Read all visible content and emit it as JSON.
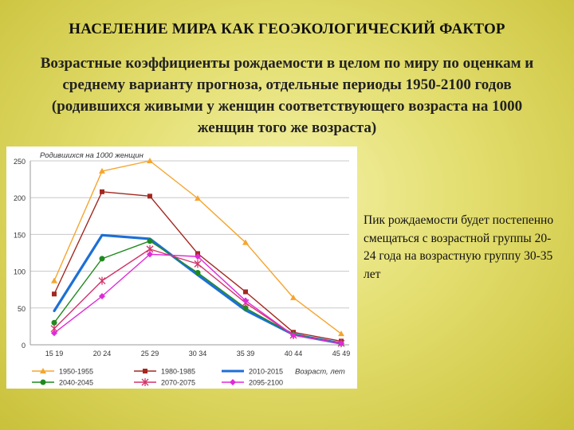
{
  "slide": {
    "title": "НАСЕЛЕНИЕ МИРА КАК ГЕОЭКОЛОГИЧЕСКИЙ ФАКТОР",
    "subtitle": "Возрастные коэффициенты рождаемости в целом по миру по оценкам и среднему варианту прогноза, отдельные периоды 1950-2100 годов (родившихся живыми у женщин соответствующего возраста на 1000 женщин того же возраста)",
    "note": "Пик рождаемости будет постепенно смещаться с возрастной группы 20-24 года на возрастную группу 30-35 лет"
  },
  "chart_data": {
    "type": "line",
    "ylabel": "Родившихся на 1000 женщин",
    "xlabel": "Возраст, лет",
    "ylim": [
      0,
      250
    ],
    "yticks": [
      "0",
      "50",
      "100",
      "150",
      "200",
      "250"
    ],
    "grid": true,
    "legend_position": "bottom",
    "categories": [
      "15 19",
      "20 24",
      "25 29",
      "30 34",
      "35 39",
      "40 44",
      "45 49"
    ],
    "series": [
      {
        "name": "1950-1955",
        "color": "#f5a52e",
        "marker": "triangle",
        "values": [
          87,
          236,
          250,
          199,
          139,
          64,
          15
        ]
      },
      {
        "name": "1980-1985",
        "color": "#a3281f",
        "marker": "square",
        "values": [
          69,
          208,
          202,
          124,
          72,
          17,
          5
        ]
      },
      {
        "name": "2010-2015",
        "color": "#1d6fd6",
        "marker": "none",
        "values": [
          46,
          149,
          144,
          95,
          47,
          14,
          2
        ]
      },
      {
        "name": "2040-2045",
        "color": "#1e8a1e",
        "marker": "circle",
        "values": [
          30,
          117,
          141,
          98,
          50,
          14,
          2
        ]
      },
      {
        "name": "2070-2075",
        "color": "#d2356b",
        "marker": "star",
        "values": [
          22,
          87,
          130,
          110,
          57,
          13,
          2
        ]
      },
      {
        "name": "2095-2100",
        "color": "#e02ad8",
        "marker": "diamond",
        "values": [
          16,
          66,
          123,
          120,
          60,
          13,
          2
        ]
      }
    ]
  }
}
